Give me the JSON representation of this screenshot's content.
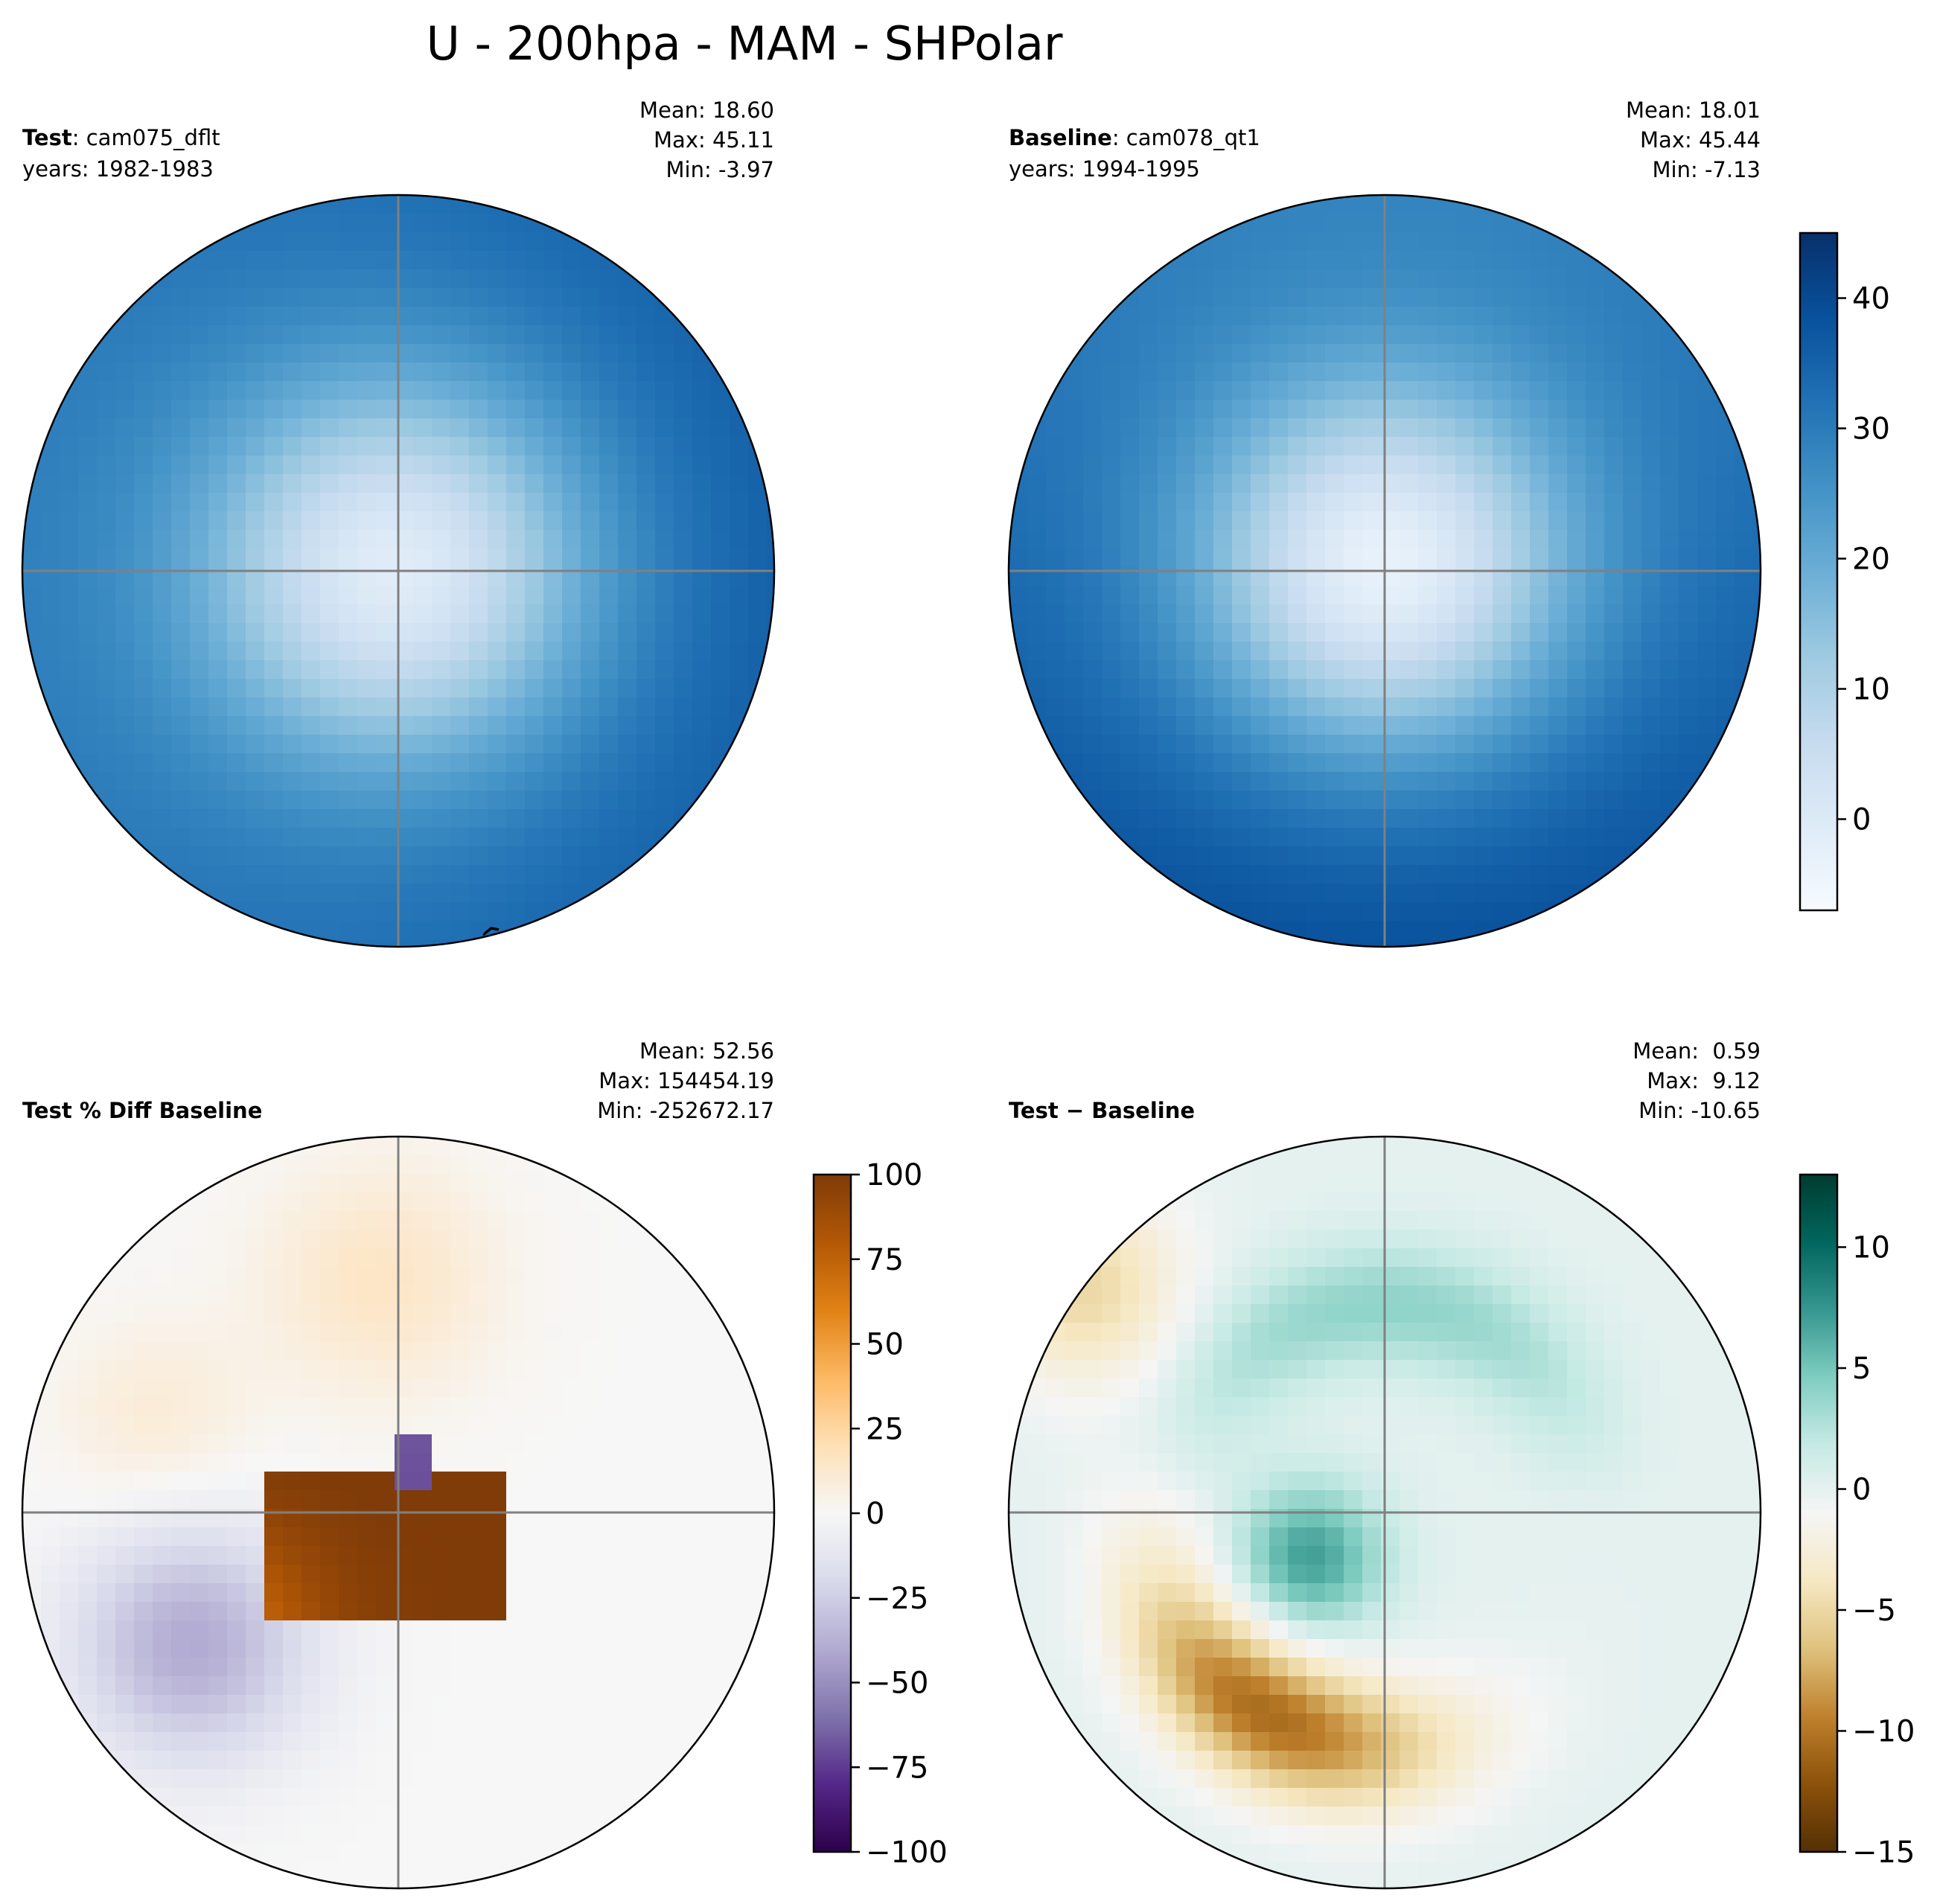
{
  "figure": {
    "title": "U - 200hpa - MAM - SHPolar"
  },
  "chart_data": [
    {
      "type": "heatmap",
      "projection": "south-polar-stereographic",
      "panel": "test",
      "title_bold": "Test",
      "title_rest": ": cam075_dflt",
      "years": "years: 1982-1983",
      "stats": {
        "mean": "Mean: 18.60",
        "max": "Max: 45.11",
        "min": "Min: -3.97"
      },
      "colormap": "Blues",
      "vmin": -7,
      "vmax": 45,
      "field": {
        "center_value": -1,
        "jet_value": 33,
        "sector_amplitude": 3,
        "sector_phase_deg": 0
      }
    },
    {
      "type": "heatmap",
      "projection": "south-polar-stereographic",
      "panel": "baseline",
      "title_bold": "Baseline",
      "title_rest": ": cam078_qt1",
      "years": "years: 1994-1995",
      "stats": {
        "mean": "Mean: 18.01",
        "max": "Max: 45.44",
        "min": "Min: -7.13"
      },
      "colormap": "Blues",
      "vmin": -7,
      "vmax": 45,
      "colorbar": {
        "ticks": [
          0,
          10,
          20,
          30,
          40
        ],
        "tick_labels": [
          "0",
          "10",
          "20",
          "30",
          "40"
        ]
      },
      "field": {
        "center_value": -3,
        "jet_value": 34,
        "sector_amplitude": 5,
        "sector_phase_deg": 90
      }
    },
    {
      "type": "heatmap",
      "projection": "south-polar-stereographic",
      "panel": "pct_diff",
      "title_bold": "Test % Diff Baseline",
      "title_rest": "",
      "stats": {
        "mean": "Mean: 52.56",
        "max": "Max: 154454.19",
        "min": "Min: -252672.17"
      },
      "colormap": "PuOr_r",
      "vmin": -100,
      "vmax": 100,
      "colorbar": {
        "ticks": [
          100,
          75,
          50,
          25,
          0,
          -25,
          -50,
          -75,
          -100
        ],
        "tick_labels": [
          "100",
          "75",
          "50",
          "25",
          "0",
          "−25",
          "−50",
          "−75",
          "−100"
        ]
      },
      "field": {
        "core_value": 100,
        "negative_lobe": -40,
        "upper_band": 15
      }
    },
    {
      "type": "heatmap",
      "projection": "south-polar-stereographic",
      "panel": "diff",
      "title_bold": "Test",
      "title_rest": " − Baseline",
      "stats": {
        "mean": "Mean:  0.59",
        "max": "Max:  9.12",
        "min": "Min: -10.65"
      },
      "colormap": "BrBG",
      "vmin": -15,
      "vmax": 13,
      "colorbar": {
        "ticks": [
          10,
          5,
          0,
          -5,
          -10,
          -15
        ],
        "tick_labels": [
          "10",
          "5",
          "0",
          "−5",
          "−10",
          "−15"
        ]
      },
      "field": {
        "arc_min": -10.65,
        "center_max": 7,
        "ring_max": 4
      }
    }
  ]
}
